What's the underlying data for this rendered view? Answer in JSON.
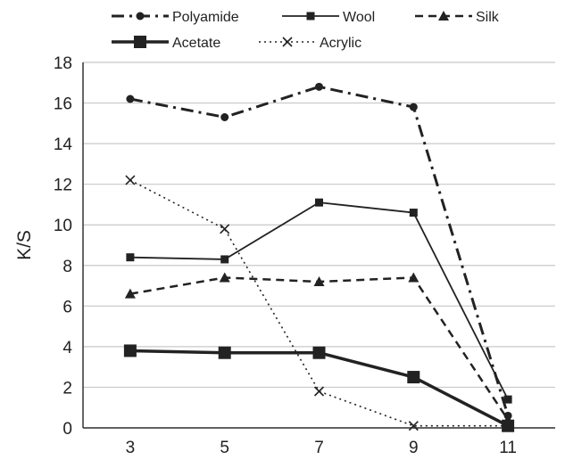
{
  "chart_data": {
    "type": "line",
    "title": "",
    "xlabel": "",
    "ylabel": "K/S",
    "x": [
      3,
      5,
      7,
      9,
      11
    ],
    "x_ticks": [
      "3",
      "5",
      "7",
      "9",
      "11"
    ],
    "ylim": [
      0,
      18
    ],
    "y_ticks": [
      "0",
      "2",
      "4",
      "6",
      "8",
      "10",
      "12",
      "14",
      "16",
      "18"
    ],
    "grid": "horizontal",
    "legend_position": "top",
    "series": [
      {
        "name": "Polyamide",
        "values": [
          16.2,
          15.3,
          16.8,
          15.8,
          0.6
        ],
        "color": "#222222",
        "style": "dash-dot",
        "marker": "circle"
      },
      {
        "name": "Wool",
        "values": [
          8.4,
          8.3,
          11.1,
          10.6,
          1.4
        ],
        "color": "#222222",
        "style": "solid",
        "marker": "small-square"
      },
      {
        "name": "Silk",
        "values": [
          6.6,
          7.4,
          7.2,
          7.4,
          0.4
        ],
        "color": "#222222",
        "style": "dash",
        "marker": "triangle"
      },
      {
        "name": "Acetate",
        "values": [
          3.8,
          3.7,
          3.7,
          2.5,
          0.1
        ],
        "color": "#222222",
        "style": "solid-thick",
        "marker": "square"
      },
      {
        "name": "Acrylic",
        "values": [
          12.2,
          9.8,
          1.8,
          0.1,
          0.1
        ],
        "color": "#222222",
        "style": "dot",
        "marker": "x"
      }
    ]
  }
}
